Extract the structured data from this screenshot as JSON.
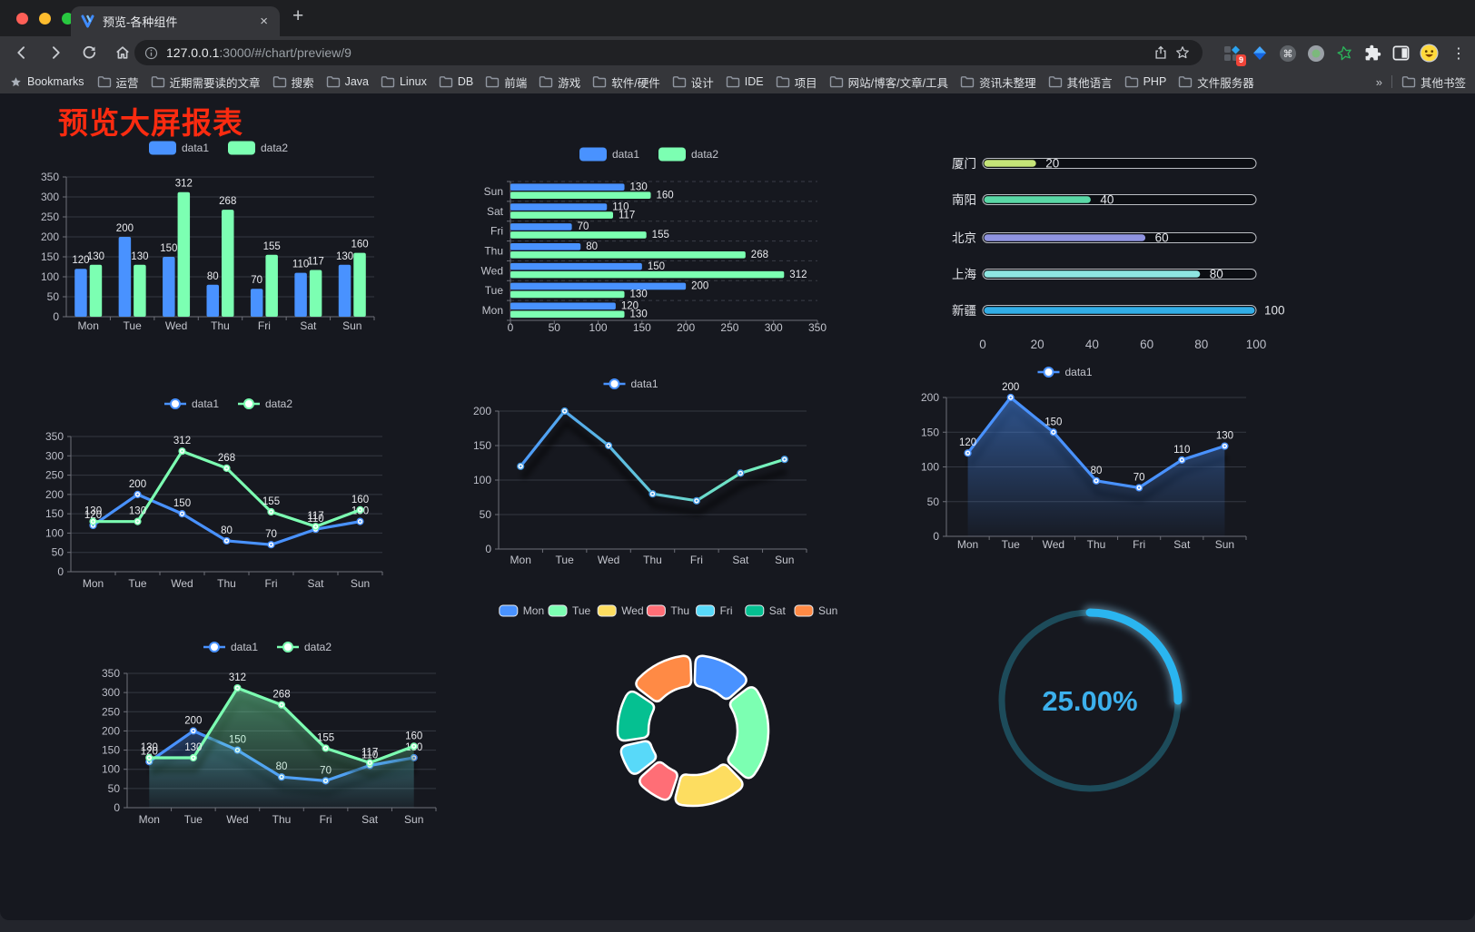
{
  "browser": {
    "tab": {
      "title": "预览-各种组件",
      "close_glyph": "×",
      "new_tab_glyph": "+"
    },
    "address": {
      "host": "127.0.0.1",
      "rest": ":3000/#/chart/preview/9"
    },
    "extension_badge": "9",
    "menu_glyph": "⋮",
    "cmd_glyph": "⌘",
    "bookmarks_bar": {
      "label": "Bookmarks",
      "folders": [
        "运营",
        "近期需要读的文章",
        "搜索",
        "Java",
        "Linux",
        "DB",
        "前端",
        "游戏",
        "软件/硬件",
        "设计",
        "IDE",
        "项目",
        "网站/博客/文章/工具",
        "资讯未整理",
        "其他语言",
        "PHP",
        "文件服务器"
      ],
      "overflow_glyph": "»",
      "other_bookmarks": "其他书签"
    }
  },
  "page": {
    "title": "预览大屏报表",
    "title_color": "#fb2b10",
    "background": "#16181f"
  },
  "palette": {
    "data1": "#4992ff",
    "data2": "#7cffb2",
    "yellow": "#fddd60",
    "red": "#ff6e76",
    "lightblue": "#58d9f9",
    "teal": "#05c091",
    "orange": "#ff8a45"
  },
  "chart_data": [
    {
      "id": "vbar",
      "type": "bar",
      "categories": [
        "Mon",
        "Tue",
        "Wed",
        "Thu",
        "Fri",
        "Sat",
        "Sun"
      ],
      "series": [
        {
          "name": "data1",
          "color": "#4992ff",
          "values": [
            120,
            200,
            150,
            80,
            70,
            110,
            130
          ]
        },
        {
          "name": "data2",
          "color": "#7cffb2",
          "values": [
            130,
            130,
            312,
            268,
            155,
            117,
            160
          ]
        }
      ],
      "ylim": [
        0,
        350
      ],
      "yticks": [
        0,
        50,
        100,
        150,
        200,
        250,
        300,
        350
      ],
      "legend_position": "top",
      "grid": true,
      "value_labels": true
    },
    {
      "id": "hbar",
      "type": "hbar",
      "categories_top_to_bottom": [
        "Sun",
        "Sat",
        "Fri",
        "Thu",
        "Wed",
        "Tue",
        "Mon"
      ],
      "series": [
        {
          "name": "data1",
          "color": "#4992ff",
          "values_top_to_bottom": [
            130,
            110,
            70,
            80,
            150,
            200,
            120
          ]
        },
        {
          "name": "data2",
          "color": "#7cffb2",
          "values_top_to_bottom": [
            160,
            117,
            155,
            268,
            312,
            130,
            130
          ]
        }
      ],
      "xlim": [
        0,
        350
      ],
      "xticks": [
        0,
        50,
        100,
        150,
        200,
        250,
        300,
        350
      ],
      "legend_position": "top",
      "value_labels": true
    },
    {
      "id": "progress",
      "type": "progress-bars",
      "items": [
        {
          "label": "厦门",
          "value": 20,
          "color": "#c5e478"
        },
        {
          "label": "南阳",
          "value": 40,
          "color": "#5ad8a6"
        },
        {
          "label": "北京",
          "value": 60,
          "color": "#8f93e0"
        },
        {
          "label": "上海",
          "value": 80,
          "color": "#8ee6e2"
        },
        {
          "label": "新疆",
          "value": 100,
          "color": "#32ade6"
        }
      ],
      "xlim": [
        0,
        100
      ],
      "xticks": [
        0,
        20,
        40,
        60,
        80,
        100
      ]
    },
    {
      "id": "line2",
      "type": "line",
      "categories": [
        "Mon",
        "Tue",
        "Wed",
        "Thu",
        "Fri",
        "Sat",
        "Sun"
      ],
      "series": [
        {
          "name": "data1",
          "color": "#4992ff",
          "values": [
            120,
            200,
            150,
            80,
            70,
            110,
            130
          ]
        },
        {
          "name": "data2",
          "color": "#7cffb2",
          "values": [
            130,
            130,
            312,
            268,
            155,
            117,
            160
          ]
        }
      ],
      "ylim": [
        0,
        350
      ],
      "yticks": [
        0,
        50,
        100,
        150,
        200,
        250,
        300,
        350
      ],
      "legend_position": "top",
      "value_labels": true,
      "shadow": false
    },
    {
      "id": "lineGrad",
      "type": "line",
      "categories": [
        "Mon",
        "Tue",
        "Wed",
        "Thu",
        "Fri",
        "Sat",
        "Sun"
      ],
      "series": [
        {
          "name": "data1",
          "gradient": [
            "#4992ff",
            "#7cffb2"
          ],
          "values": [
            120,
            200,
            150,
            80,
            70,
            110,
            130
          ]
        }
      ],
      "ylim": [
        0,
        200
      ],
      "yticks": [
        0,
        50,
        100,
        150,
        200
      ],
      "legend_position": "top",
      "value_labels": false,
      "shadow": true
    },
    {
      "id": "areaBlue",
      "type": "line",
      "categories": [
        "Mon",
        "Tue",
        "Wed",
        "Thu",
        "Fri",
        "Sat",
        "Sun"
      ],
      "series": [
        {
          "name": "data1",
          "color": "#4992ff",
          "area": true,
          "values": [
            120,
            200,
            150,
            80,
            70,
            110,
            130
          ]
        }
      ],
      "ylim": [
        0,
        200
      ],
      "yticks": [
        0,
        50,
        100,
        150,
        200
      ],
      "legend_position": "top",
      "value_labels": true,
      "shadow": true
    },
    {
      "id": "areaTwo",
      "type": "line",
      "categories": [
        "Mon",
        "Tue",
        "Wed",
        "Thu",
        "Fri",
        "Sat",
        "Sun"
      ],
      "series": [
        {
          "name": "data1",
          "color": "#4992ff",
          "area": true,
          "values": [
            120,
            200,
            150,
            80,
            70,
            110,
            130
          ]
        },
        {
          "name": "data2",
          "color": "#7cffb2",
          "area": true,
          "values": [
            130,
            130,
            312,
            268,
            155,
            117,
            160
          ]
        }
      ],
      "ylim": [
        0,
        350
      ],
      "yticks": [
        0,
        50,
        100,
        150,
        200,
        250,
        300,
        350
      ],
      "legend_position": "top",
      "value_labels": true,
      "shadow": true
    },
    {
      "id": "donut",
      "type": "donut",
      "categories": [
        "Mon",
        "Tue",
        "Wed",
        "Thu",
        "Fri",
        "Sat",
        "Sun"
      ],
      "values": [
        120,
        200,
        150,
        80,
        70,
        110,
        130
      ],
      "colors": [
        "#4992ff",
        "#7cffb2",
        "#fddd60",
        "#ff6e76",
        "#58d9f9",
        "#05c091",
        "#ff8a45"
      ],
      "legend_position": "top"
    },
    {
      "id": "gauge",
      "type": "gauge",
      "value": 25,
      "label": "25.00%",
      "color": "#2ab5f0",
      "track_color": "#1d4b5a",
      "text_color": "#3cb0ec"
    }
  ]
}
